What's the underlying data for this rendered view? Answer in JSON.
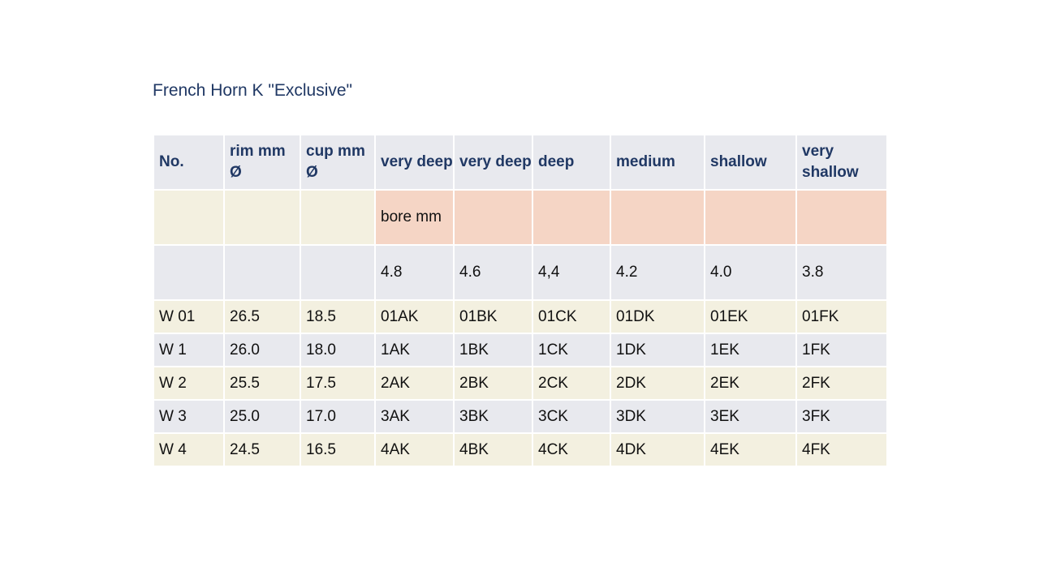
{
  "title": "French Horn K \"Exclusive\"",
  "headers": [
    "No.",
    "rim mm Ø",
    "cup mm Ø",
    "very deep",
    "very deep",
    "deep",
    "medium",
    "shallow",
    "very shallow"
  ],
  "bore_label": "bore mm",
  "bore_values": [
    "4.8",
    "4.6",
    "4,4",
    "4.2",
    "4.0",
    "3.8"
  ],
  "rows": [
    [
      "W 01",
      "26.5",
      "18.5",
      "01AK",
      "01BK",
      "01CK",
      "01DK",
      "01EK",
      "01FK"
    ],
    [
      "W 1",
      "26.0",
      "18.0",
      "1AK",
      "1BK",
      "1CK",
      "1DK",
      "1EK",
      "1FK"
    ],
    [
      "W 2",
      "25.5",
      "17.5",
      "2AK",
      "2BK",
      "2CK",
      "2DK",
      "2EK",
      "2FK"
    ],
    [
      "W 3",
      "25.0",
      "17.0",
      "3AK",
      "3BK",
      "3CK",
      "3DK",
      "3EK",
      "3FK"
    ],
    [
      "W 4",
      "24.5",
      "16.5",
      "4AK",
      "4BK",
      "4CK",
      "4DK",
      "4EK",
      "4FK"
    ]
  ]
}
